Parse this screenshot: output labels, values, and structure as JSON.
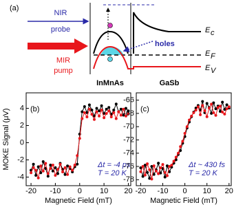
{
  "diagram": {
    "panel_label": "(a)",
    "probe_label": [
      "NIR",
      "probe"
    ],
    "pump_label": [
      "MIR",
      "pump"
    ],
    "holes_label": "holes",
    "ec_label": "E",
    "ec_sub": "c",
    "ef_label": "E",
    "ef_sub": "F",
    "ev_label": "E",
    "ev_sub": "V",
    "left_material": "InMnAs",
    "right_material": "GaSb"
  },
  "chart_data": [
    {
      "type": "line",
      "panel_label": "(b)",
      "ylabel": "MOKE Signal (μV)",
      "xlabel": "Magnetic Field (mT)",
      "annotations": [
        "Δt = -4 ps",
        "T = 20 K"
      ],
      "x": [
        -20,
        -19,
        -18,
        -17,
        -16,
        -15,
        -14,
        -13,
        -12,
        -11,
        -10,
        -9,
        -8,
        -7,
        -6,
        -5,
        -4,
        -3,
        -2,
        -1,
        0,
        1,
        2,
        3,
        4,
        5,
        6,
        7,
        8,
        9,
        10,
        11,
        12,
        13,
        14,
        15,
        16,
        17,
        18,
        19,
        20
      ],
      "xlim": [
        -22,
        21
      ],
      "xticks": [
        -20,
        -10,
        0,
        10,
        20
      ],
      "ylim": [
        -5,
        5.8
      ],
      "yticks": [
        -4,
        -2,
        0,
        2,
        4
      ],
      "series": [
        {
          "color": "#000000",
          "values": [
            -3.2,
            -2.5,
            -3.8,
            -2.8,
            -3.5,
            -2.2,
            -3.0,
            -3.9,
            -2.6,
            -3.3,
            -2.9,
            -3.6,
            -2.4,
            -3.1,
            -3.7,
            -2.7,
            -3.0,
            -3.4,
            -2.8,
            -2.5,
            1.0,
            3.6,
            4.2,
            3.5,
            4.4,
            3.8,
            3.1,
            4.0,
            3.7,
            4.3,
            3.4,
            3.9,
            4.1,
            3.3,
            3.8,
            4.5,
            3.6,
            3.9,
            3.2,
            4.0,
            3.7
          ]
        },
        {
          "color": "#e8161b",
          "values": [
            -3.5,
            -2.9,
            -3.2,
            -4.1,
            -2.7,
            -3.3,
            -2.4,
            -3.6,
            -3.0,
            -2.6,
            -3.8,
            -3.1,
            -2.5,
            -3.4,
            -2.9,
            -3.7,
            -2.8,
            -3.2,
            -2.6,
            -1.5,
            0.5,
            2.8,
            3.5,
            3.0,
            3.9,
            3.3,
            2.7,
            3.6,
            3.1,
            3.8,
            2.9,
            3.4,
            3.7,
            3.0,
            3.5,
            2.8,
            3.6,
            3.2,
            3.9,
            3.1,
            3.4
          ]
        }
      ]
    },
    {
      "type": "line",
      "panel_label": "(c)",
      "xlabel": "Magnetic Field (mT)",
      "annotations": [
        "Δt ~ 430 fs",
        "T = 20 K"
      ],
      "x": [
        -20,
        -19,
        -18,
        -17,
        -16,
        -15,
        -14,
        -13,
        -12,
        -11,
        -10,
        -9,
        -8,
        -7,
        -6,
        -5,
        -4,
        -3,
        -2,
        -1,
        0,
        1,
        2,
        3,
        4,
        5,
        6,
        7,
        8,
        9,
        10,
        11,
        12,
        13,
        14,
        15,
        16,
        17,
        18,
        19,
        20
      ],
      "xlim": [
        -22,
        21
      ],
      "xticks": [
        -20,
        -10,
        0,
        10,
        20
      ],
      "ylim": [
        -78.9,
        -64.9
      ],
      "yticks": [
        -78,
        -76,
        -74,
        -72,
        -70,
        -68,
        -66
      ],
      "series": [
        {
          "color": "#000000",
          "values": [
            -76.2,
            -77.5,
            -75.8,
            -76.9,
            -77.8,
            -76.0,
            -77.2,
            -76.5,
            -75.5,
            -77.0,
            -76.3,
            -77.6,
            -75.9,
            -76.8,
            -76.1,
            -75.5,
            -75.0,
            -74.2,
            -73.6,
            -72.5,
            -71.5,
            -70.2,
            -69.3,
            -68.5,
            -67.8,
            -67.2,
            -66.8,
            -67.5,
            -66.2,
            -67.9,
            -66.5,
            -67.1,
            -68.0,
            -66.4,
            -67.3,
            -66.9,
            -67.7,
            -66.3,
            -67.4,
            -66.7,
            -67.2
          ]
        },
        {
          "color": "#e8161b",
          "values": [
            -76.8,
            -76.0,
            -77.3,
            -75.6,
            -76.5,
            -77.9,
            -75.9,
            -76.7,
            -77.1,
            -76.2,
            -75.7,
            -76.9,
            -77.4,
            -76.0,
            -75.8,
            -75.2,
            -74.6,
            -74.0,
            -73.0,
            -72.2,
            -71.0,
            -70.0,
            -69.0,
            -68.4,
            -67.9,
            -67.5,
            -67.0,
            -68.2,
            -66.8,
            -67.6,
            -68.5,
            -67.2,
            -66.6,
            -67.9,
            -68.3,
            -67.1,
            -66.9,
            -67.8,
            -68.1,
            -67.3,
            -67.0
          ]
        }
      ]
    }
  ]
}
